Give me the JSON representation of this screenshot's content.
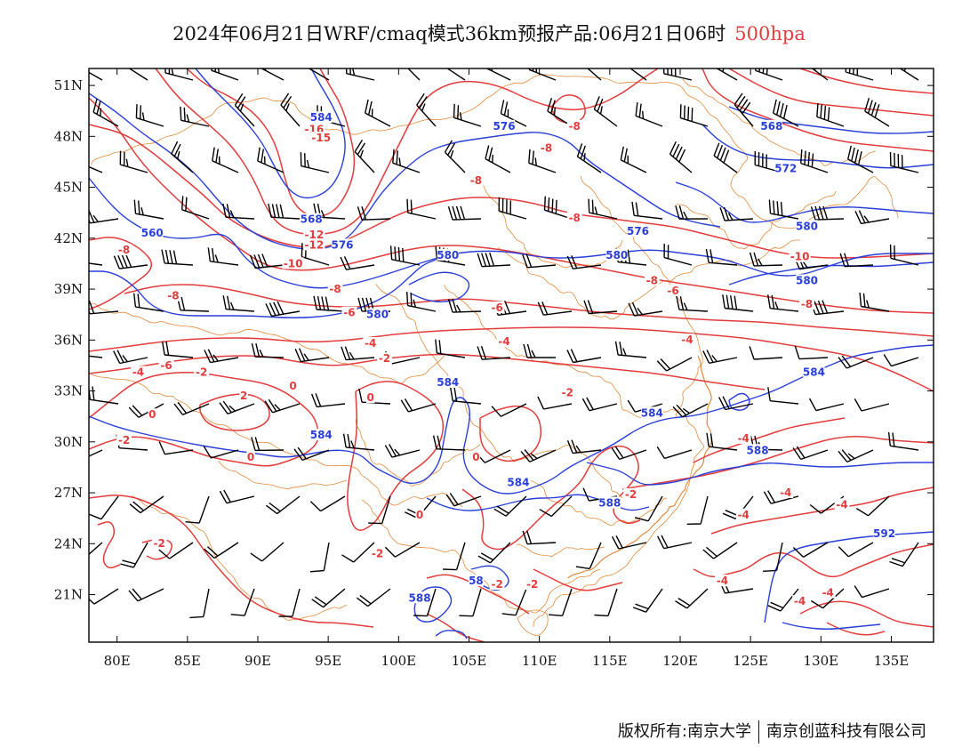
{
  "title": {
    "main": "2024年06月21日WRF/cmaq模式36km预报产品:06月21日06时",
    "level": "500hpa"
  },
  "axes": {
    "y_labels": [
      "51N",
      "48N",
      "45N",
      "42N",
      "39N",
      "36N",
      "33N",
      "30N",
      "27N",
      "24N",
      "21N"
    ],
    "x_labels": [
      "80E",
      "85E",
      "90E",
      "95E",
      "100E",
      "105E",
      "110E",
      "115E",
      "120E",
      "125E",
      "130E",
      "135E"
    ]
  },
  "colors": {
    "geopotential": "#2a3fd8",
    "temperature": "#e23c3c",
    "boundaries": "#e08a3a",
    "wind": "#000000"
  },
  "contour_labels": {
    "geopotential": [
      {
        "text": "584",
        "lon": 94.5,
        "lat": 49.0
      },
      {
        "text": "576",
        "lon": 107.5,
        "lat": 48.5
      },
      {
        "text": "568",
        "lon": 126.5,
        "lat": 48.5
      },
      {
        "text": "572",
        "lon": 127.5,
        "lat": 46.0
      },
      {
        "text": "568",
        "lon": 93.8,
        "lat": 43.0
      },
      {
        "text": "560",
        "lon": 82.5,
        "lat": 42.2
      },
      {
        "text": "576",
        "lon": 96.0,
        "lat": 41.5
      },
      {
        "text": "576",
        "lon": 117.0,
        "lat": 42.3
      },
      {
        "text": "580",
        "lon": 129.0,
        "lat": 42.6
      },
      {
        "text": "580",
        "lon": 103.5,
        "lat": 40.9
      },
      {
        "text": "580",
        "lon": 115.5,
        "lat": 40.9
      },
      {
        "text": "580",
        "lon": 129.0,
        "lat": 39.4
      },
      {
        "text": "580",
        "lon": 98.5,
        "lat": 37.4
      },
      {
        "text": "584",
        "lon": 129.5,
        "lat": 34.0
      },
      {
        "text": "584",
        "lon": 103.5,
        "lat": 33.4
      },
      {
        "text": "584",
        "lon": 118.0,
        "lat": 31.6
      },
      {
        "text": "584",
        "lon": 94.5,
        "lat": 30.3
      },
      {
        "text": "588",
        "lon": 125.5,
        "lat": 29.4
      },
      {
        "text": "584",
        "lon": 108.5,
        "lat": 27.5
      },
      {
        "text": "588",
        "lon": 115.0,
        "lat": 26.3
      },
      {
        "text": "592",
        "lon": 134.5,
        "lat": 24.5
      },
      {
        "text": "58",
        "lon": 105.5,
        "lat": 21.7
      },
      {
        "text": "588",
        "lon": 101.5,
        "lat": 20.7
      }
    ],
    "temperature": [
      {
        "text": "-16",
        "lon": 94.0,
        "lat": 48.3
      },
      {
        "text": "-15",
        "lon": 94.5,
        "lat": 47.8
      },
      {
        "text": "-8",
        "lon": 112.5,
        "lat": 48.5
      },
      {
        "text": "-8",
        "lon": 110.5,
        "lat": 47.2
      },
      {
        "text": "-8",
        "lon": 105.5,
        "lat": 45.3
      },
      {
        "text": "-8",
        "lon": 112.5,
        "lat": 43.1
      },
      {
        "text": "-12",
        "lon": 94.0,
        "lat": 42.1
      },
      {
        "text": "-12",
        "lon": 94.0,
        "lat": 41.5
      },
      {
        "text": "-10",
        "lon": 92.5,
        "lat": 40.4
      },
      {
        "text": "-10",
        "lon": 128.5,
        "lat": 40.8
      },
      {
        "text": "-8",
        "lon": 80.5,
        "lat": 41.2
      },
      {
        "text": "-8",
        "lon": 95.5,
        "lat": 38.9
      },
      {
        "text": "-8",
        "lon": 84.0,
        "lat": 38.5
      },
      {
        "text": "-8",
        "lon": 118.0,
        "lat": 39.4
      },
      {
        "text": "-6",
        "lon": 119.5,
        "lat": 38.8
      },
      {
        "text": "-8",
        "lon": 129.0,
        "lat": 38.0
      },
      {
        "text": "-6",
        "lon": 96.5,
        "lat": 37.5
      },
      {
        "text": "-6",
        "lon": 107.0,
        "lat": 37.8
      },
      {
        "text": "-4",
        "lon": 98.0,
        "lat": 35.7
      },
      {
        "text": "-4",
        "lon": 107.5,
        "lat": 35.8
      },
      {
        "text": "-4",
        "lon": 120.5,
        "lat": 35.9
      },
      {
        "text": "-4",
        "lon": 81.5,
        "lat": 34.0
      },
      {
        "text": "-6",
        "lon": 83.5,
        "lat": 34.4
      },
      {
        "text": "-2",
        "lon": 86.0,
        "lat": 34.0
      },
      {
        "text": "-2",
        "lon": 99.0,
        "lat": 34.8
      },
      {
        "text": "0",
        "lon": 92.5,
        "lat": 33.2
      },
      {
        "text": "2",
        "lon": 89.0,
        "lat": 32.6
      },
      {
        "text": "0",
        "lon": 98.0,
        "lat": 32.5
      },
      {
        "text": "-2",
        "lon": 112.0,
        "lat": 32.8
      },
      {
        "text": "0",
        "lon": 82.5,
        "lat": 31.5
      },
      {
        "text": "-2",
        "lon": 80.5,
        "lat": 30.0
      },
      {
        "text": "0",
        "lon": 89.5,
        "lat": 29.0
      },
      {
        "text": "-4",
        "lon": 124.5,
        "lat": 30.1
      },
      {
        "text": "0",
        "lon": 105.5,
        "lat": 29.0
      },
      {
        "text": "-2",
        "lon": 116.5,
        "lat": 26.8
      },
      {
        "text": "-4",
        "lon": 127.5,
        "lat": 26.9
      },
      {
        "text": "-4",
        "lon": 131.5,
        "lat": 26.2
      },
      {
        "text": "-4",
        "lon": 124.5,
        "lat": 25.6
      },
      {
        "text": "0",
        "lon": 101.5,
        "lat": 25.6
      },
      {
        "text": "-2",
        "lon": 83.0,
        "lat": 23.9
      },
      {
        "text": "-2",
        "lon": 98.5,
        "lat": 23.3
      },
      {
        "text": "-2",
        "lon": 107.0,
        "lat": 21.5
      },
      {
        "text": "-2",
        "lon": 109.5,
        "lat": 21.5
      },
      {
        "text": "-4",
        "lon": 123.0,
        "lat": 21.7
      },
      {
        "text": "-4",
        "lon": 130.5,
        "lat": 21.0
      },
      {
        "text": "-4",
        "lon": 128.5,
        "lat": 20.5
      }
    ]
  },
  "footer": {
    "left": "版权所有:南京大学",
    "right": "南京创蓝科技有限公司"
  }
}
